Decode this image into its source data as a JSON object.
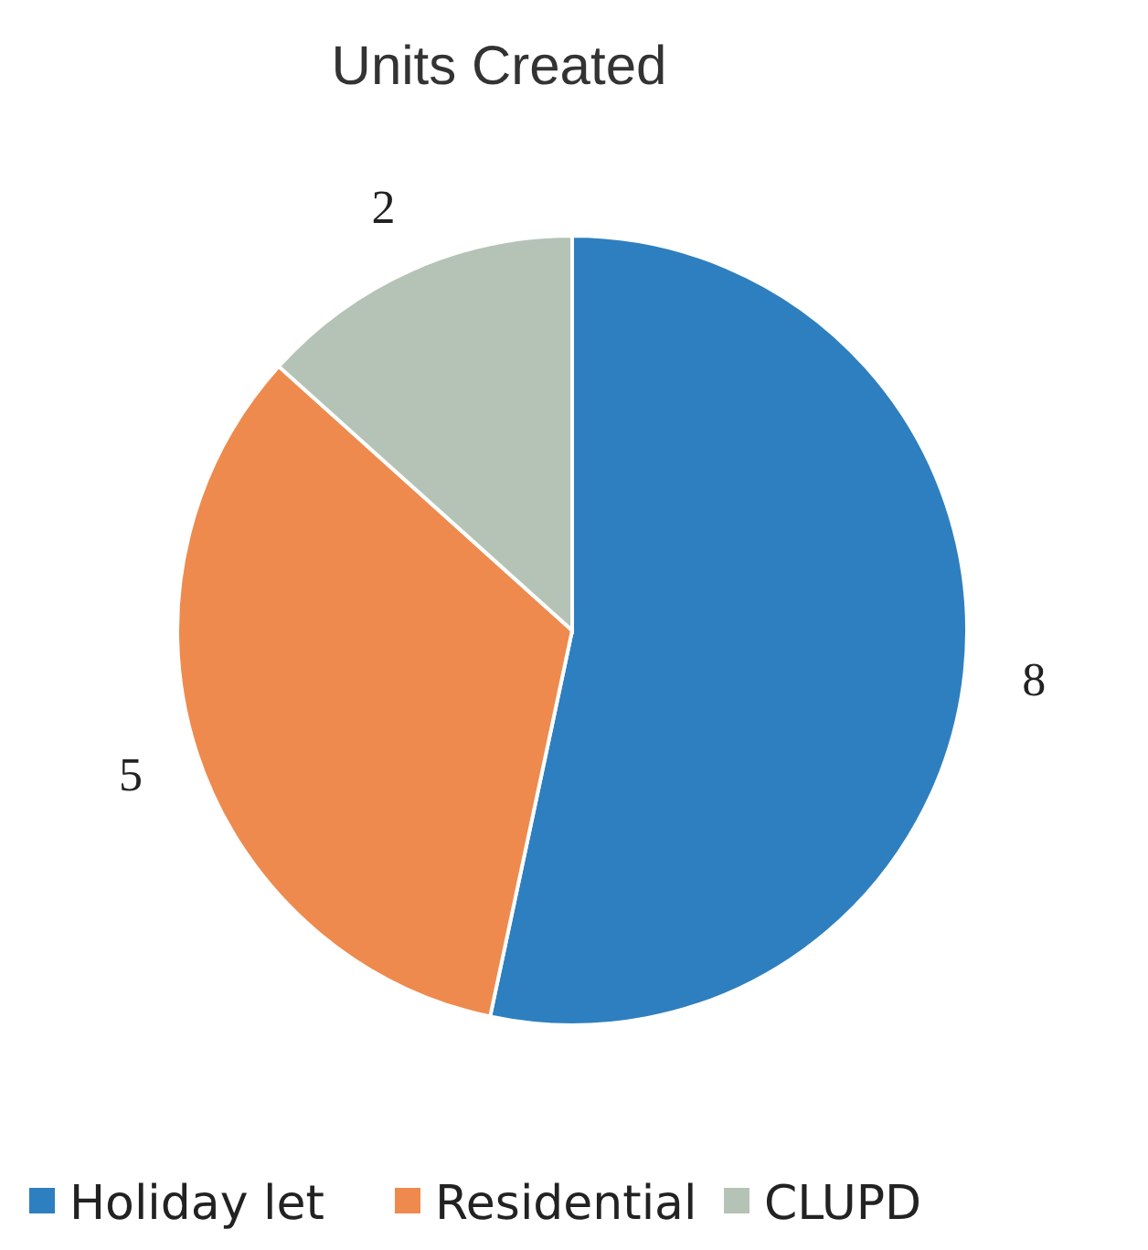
{
  "chart_data": {
    "type": "pie",
    "title": "Units Created",
    "categories": [
      "Holiday let",
      "Residential",
      "CLUPD"
    ],
    "values": [
      8,
      5,
      2
    ],
    "colors": [
      "#2e7fbf",
      "#ee8a4e",
      "#b4c3b6"
    ],
    "data_labels": true,
    "legend": "bottom"
  }
}
